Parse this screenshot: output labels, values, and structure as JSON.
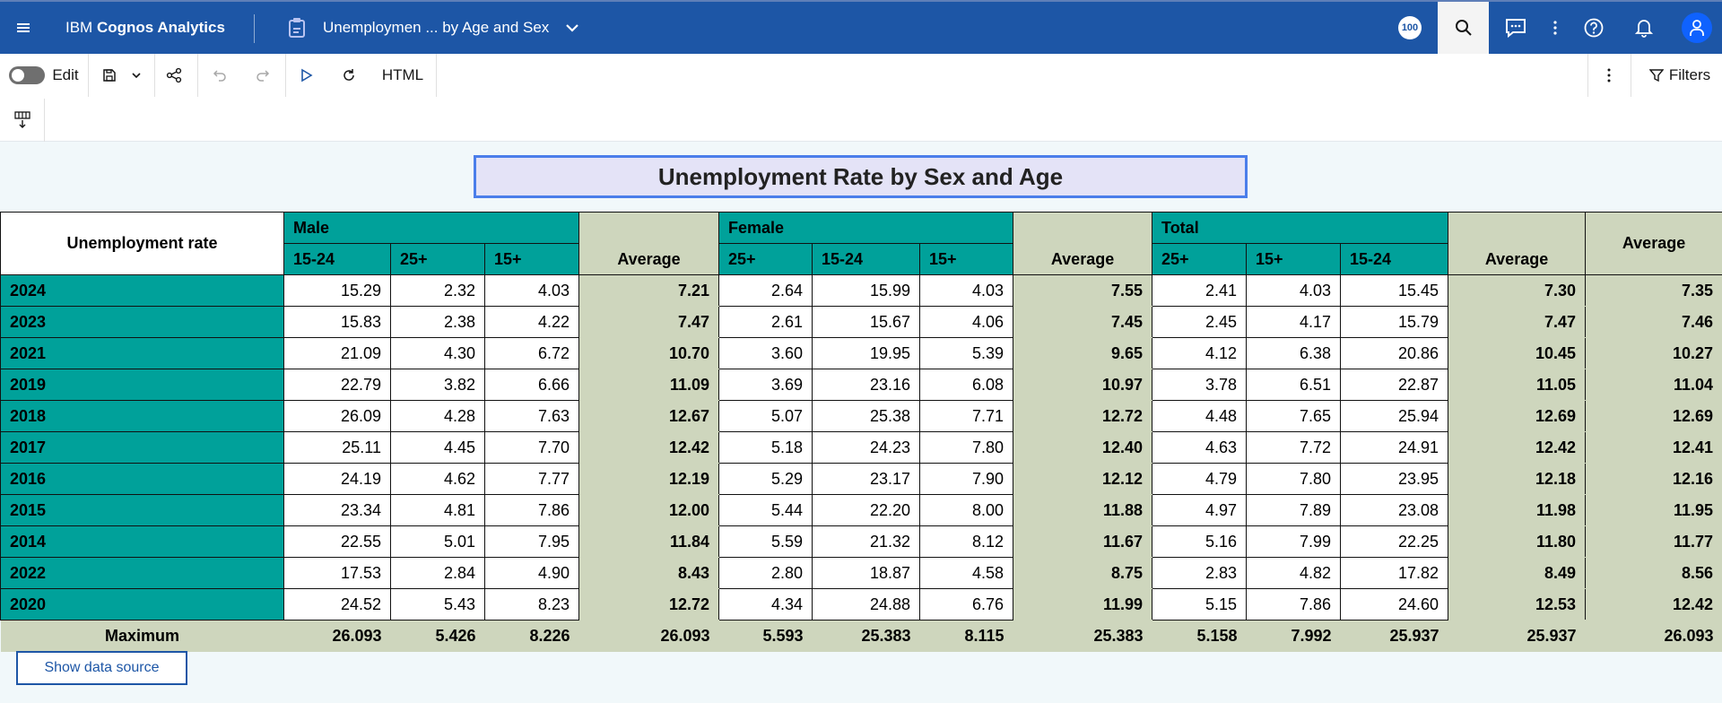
{
  "topbar": {
    "app_name_prefix": "IBM ",
    "app_name_bold": "Cognos Analytics",
    "document_title": "Unemploymen ... by Age and Sex",
    "badge_text": "100"
  },
  "toolbar": {
    "edit_label": "Edit",
    "html_label": "HTML",
    "filters_label": "Filters"
  },
  "report": {
    "title": "Unemployment Rate by Sex and Age",
    "corner_label": "Unemployment rate",
    "groups": [
      {
        "name": "Male",
        "cols": [
          "15-24",
          "25+",
          "15+"
        ]
      },
      {
        "name": "Female",
        "cols": [
          "25+",
          "15-24",
          "15+"
        ]
      },
      {
        "name": "Total",
        "cols": [
          "25+",
          "15+",
          "15-24"
        ]
      }
    ],
    "average_label": "Average",
    "rows": [
      {
        "year": "2024",
        "vals": [
          "15.29",
          "2.32",
          "4.03",
          "7.21",
          "2.64",
          "15.99",
          "4.03",
          "7.55",
          "2.41",
          "4.03",
          "15.45",
          "7.30",
          "7.35"
        ]
      },
      {
        "year": "2023",
        "vals": [
          "15.83",
          "2.38",
          "4.22",
          "7.47",
          "2.61",
          "15.67",
          "4.06",
          "7.45",
          "2.45",
          "4.17",
          "15.79",
          "7.47",
          "7.46"
        ]
      },
      {
        "year": "2021",
        "vals": [
          "21.09",
          "4.30",
          "6.72",
          "10.70",
          "3.60",
          "19.95",
          "5.39",
          "9.65",
          "4.12",
          "6.38",
          "20.86",
          "10.45",
          "10.27"
        ]
      },
      {
        "year": "2019",
        "vals": [
          "22.79",
          "3.82",
          "6.66",
          "11.09",
          "3.69",
          "23.16",
          "6.08",
          "10.97",
          "3.78",
          "6.51",
          "22.87",
          "11.05",
          "11.04"
        ]
      },
      {
        "year": "2018",
        "vals": [
          "26.09",
          "4.28",
          "7.63",
          "12.67",
          "5.07",
          "25.38",
          "7.71",
          "12.72",
          "4.48",
          "7.65",
          "25.94",
          "12.69",
          "12.69"
        ]
      },
      {
        "year": "2017",
        "vals": [
          "25.11",
          "4.45",
          "7.70",
          "12.42",
          "5.18",
          "24.23",
          "7.80",
          "12.40",
          "4.63",
          "7.72",
          "24.91",
          "12.42",
          "12.41"
        ]
      },
      {
        "year": "2016",
        "vals": [
          "24.19",
          "4.62",
          "7.77",
          "12.19",
          "5.29",
          "23.17",
          "7.90",
          "12.12",
          "4.79",
          "7.80",
          "23.95",
          "12.18",
          "12.16"
        ]
      },
      {
        "year": "2015",
        "vals": [
          "23.34",
          "4.81",
          "7.86",
          "12.00",
          "5.44",
          "22.20",
          "8.00",
          "11.88",
          "4.97",
          "7.89",
          "23.08",
          "11.98",
          "11.95"
        ]
      },
      {
        "year": "2014",
        "vals": [
          "22.55",
          "5.01",
          "7.95",
          "11.84",
          "5.59",
          "21.32",
          "8.12",
          "11.67",
          "5.16",
          "7.99",
          "22.25",
          "11.80",
          "11.77"
        ]
      },
      {
        "year": "2022",
        "vals": [
          "17.53",
          "2.84",
          "4.90",
          "8.43",
          "2.80",
          "18.87",
          "4.58",
          "8.75",
          "2.83",
          "4.82",
          "17.82",
          "8.49",
          "8.56"
        ]
      },
      {
        "year": "2020",
        "vals": [
          "24.52",
          "5.43",
          "8.23",
          "12.72",
          "4.34",
          "24.88",
          "6.76",
          "11.99",
          "5.15",
          "7.86",
          "24.60",
          "12.53",
          "12.42"
        ]
      }
    ],
    "maximum_label": "Maximum",
    "maximum_vals": [
      "26.093",
      "5.426",
      "8.226",
      "26.093",
      "5.593",
      "25.383",
      "8.115",
      "25.383",
      "5.158",
      "7.992",
      "25.937",
      "25.937",
      "26.093"
    ],
    "show_data_source_label": "Show data source"
  }
}
